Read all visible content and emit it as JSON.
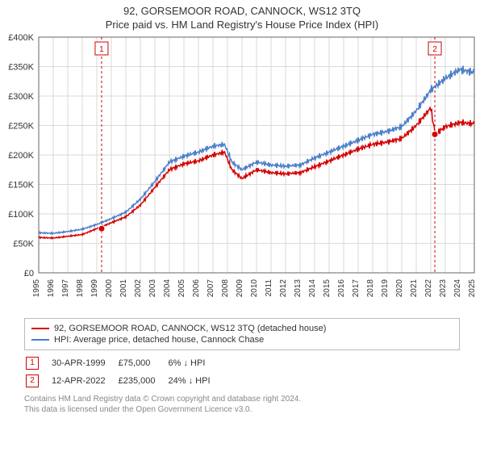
{
  "title_line1": "92, GORSEMOOR ROAD, CANNOCK, WS12 3TQ",
  "title_line2": "Price paid vs. HM Land Registry's House Price Index (HPI)",
  "chart": {
    "type": "line",
    "background_color": "#ffffff",
    "plot_bg_left": "#ffffff",
    "plot_bg_right": "#f2f2f2",
    "grid_color": "#d9d9d9",
    "axis_color": "#666666",
    "x_years": [
      1995,
      1996,
      1997,
      1998,
      1999,
      2000,
      2001,
      2002,
      2003,
      2004,
      2005,
      2006,
      2007,
      2008,
      2009,
      2010,
      2011,
      2012,
      2013,
      2014,
      2015,
      2016,
      2017,
      2018,
      2019,
      2020,
      2021,
      2022,
      2023,
      2024,
      2025
    ],
    "x_min": 1995,
    "x_max": 2025,
    "y_min": 0,
    "y_max": 400000,
    "y_step": 50000,
    "y_tick_labels": [
      "£0",
      "£50K",
      "£100K",
      "£150K",
      "£200K",
      "£250K",
      "£300K",
      "£350K",
      "£400K"
    ],
    "series": [
      {
        "name": "92, GORSEMOOR ROAD, CANNOCK, WS12 3TQ (detached house)",
        "color": "#d40000",
        "width": 1.5,
        "points": [
          [
            1995,
            60000
          ],
          [
            1996,
            59000
          ],
          [
            1997,
            62000
          ],
          [
            1998,
            65000
          ],
          [
            1999,
            75000
          ],
          [
            2000,
            85000
          ],
          [
            2001,
            95000
          ],
          [
            2002,
            115000
          ],
          [
            2003,
            145000
          ],
          [
            2004,
            175000
          ],
          [
            2005,
            185000
          ],
          [
            2006,
            190000
          ],
          [
            2007,
            200000
          ],
          [
            2007.8,
            205000
          ],
          [
            2008.3,
            175000
          ],
          [
            2009,
            160000
          ],
          [
            2010,
            175000
          ],
          [
            2011,
            170000
          ],
          [
            2012,
            168000
          ],
          [
            2013,
            170000
          ],
          [
            2014,
            180000
          ],
          [
            2015,
            190000
          ],
          [
            2016,
            200000
          ],
          [
            2017,
            210000
          ],
          [
            2018,
            218000
          ],
          [
            2019,
            222000
          ],
          [
            2020,
            228000
          ],
          [
            2021,
            250000
          ],
          [
            2022,
            280000
          ],
          [
            2022.3,
            235000
          ],
          [
            2023,
            248000
          ],
          [
            2024,
            255000
          ],
          [
            2025,
            253000
          ]
        ]
      },
      {
        "name": "HPI: Average price, detached house, Cannock Chase",
        "color": "#4a7ec8",
        "width": 1.5,
        "points": [
          [
            1995,
            68000
          ],
          [
            1996,
            67000
          ],
          [
            1997,
            70000
          ],
          [
            1998,
            74000
          ],
          [
            1999,
            82000
          ],
          [
            2000,
            92000
          ],
          [
            2001,
            103000
          ],
          [
            2002,
            125000
          ],
          [
            2003,
            155000
          ],
          [
            2004,
            188000
          ],
          [
            2005,
            198000
          ],
          [
            2006,
            205000
          ],
          [
            2007,
            215000
          ],
          [
            2007.8,
            218000
          ],
          [
            2008.3,
            188000
          ],
          [
            2009,
            175000
          ],
          [
            2010,
            188000
          ],
          [
            2011,
            183000
          ],
          [
            2012,
            181000
          ],
          [
            2013,
            183000
          ],
          [
            2014,
            195000
          ],
          [
            2015,
            205000
          ],
          [
            2016,
            215000
          ],
          [
            2017,
            225000
          ],
          [
            2018,
            235000
          ],
          [
            2019,
            240000
          ],
          [
            2020,
            248000
          ],
          [
            2021,
            275000
          ],
          [
            2022,
            310000
          ],
          [
            2023,
            330000
          ],
          [
            2024,
            345000
          ],
          [
            2025,
            340000
          ]
        ]
      }
    ],
    "marker_lines": [
      {
        "id": 1,
        "x": 1999.33,
        "color": "#d40000",
        "box_y": "top"
      },
      {
        "id": 2,
        "x": 2022.28,
        "color": "#d40000",
        "box_y": "top"
      }
    ],
    "sale_markers": [
      {
        "x": 1999.33,
        "y": 75000,
        "color": "#d40000"
      },
      {
        "x": 2022.28,
        "y": 235000,
        "color": "#d40000"
      }
    ]
  },
  "legend": {
    "series1_label": "92, GORSEMOOR ROAD, CANNOCK, WS12 3TQ (detached house)",
    "series2_label": "HPI: Average price, detached house, Cannock Chase",
    "series1_color": "#d40000",
    "series2_color": "#4a7ec8"
  },
  "markers_table": [
    {
      "num": "1",
      "date": "30-APR-1999",
      "price": "£75,000",
      "delta": "6% ↓ HPI",
      "color": "#d40000"
    },
    {
      "num": "2",
      "date": "12-APR-2022",
      "price": "£235,000",
      "delta": "24% ↓ HPI",
      "color": "#d40000"
    }
  ],
  "credit_line1": "Contains HM Land Registry data © Crown copyright and database right 2024.",
  "credit_line2": "This data is licensed under the Open Government Licence v3.0."
}
